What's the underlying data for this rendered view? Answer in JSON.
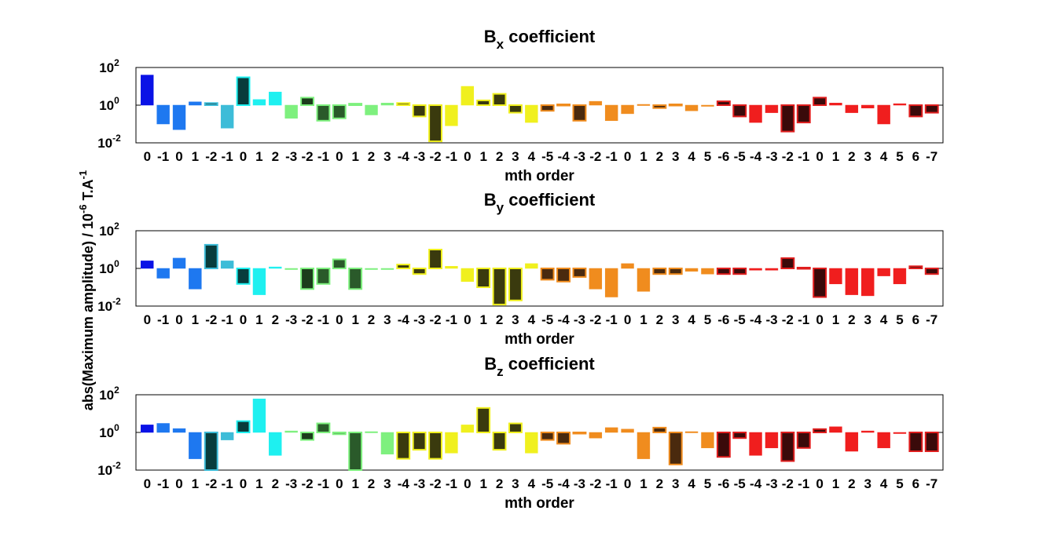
{
  "figure": {
    "ylabel_main": "abs(Maximum amplitude) / 10",
    "ylabel_exp": "-6",
    "ylabel_unit": " T.A",
    "ylabel_unit_exp": "-1"
  },
  "chart_data": [
    {
      "type": "bar",
      "title": "B",
      "title_sub": "x",
      "title_rest": " coefficient",
      "xlabel": "mth order",
      "yscale": "log",
      "ylim": [
        0.01,
        100
      ],
      "ytick_labels": [
        "10",
        "10",
        "10"
      ],
      "ytick_exps": [
        "-2",
        "0",
        "2"
      ],
      "grid": false,
      "categories": [
        "0",
        "-1",
        "0",
        "1",
        "-2",
        "-1",
        "0",
        "1",
        "2",
        "-3",
        "-2",
        "-1",
        "0",
        "1",
        "2",
        "3",
        "-4",
        "-3",
        "-2",
        "-1",
        "0",
        "1",
        "2",
        "3",
        "4",
        "-5",
        "-4",
        "-3",
        "-2",
        "-1",
        "0",
        "1",
        "2",
        "3",
        "4",
        "5",
        "-6",
        "-5",
        "-4",
        "-3",
        "-2",
        "-1",
        "0",
        "1",
        "2",
        "3",
        "4",
        "5",
        "6",
        "-7"
      ],
      "values": [
        40,
        0.1,
        0.05,
        1.5,
        1.3,
        0.06,
        30,
        2,
        5,
        0.2,
        2.5,
        0.15,
        0.2,
        1.2,
        0.3,
        1.3,
        1.3,
        0.25,
        0.012,
        0.08,
        10,
        1.8,
        4,
        0.4,
        0.12,
        0.5,
        1.1,
        0.15,
        1.6,
        0.15,
        0.35,
        1.1,
        0.7,
        1.1,
        0.5,
        0.9,
        1.6,
        0.25,
        0.12,
        0.4,
        0.04,
        0.12,
        2.5,
        1.3,
        0.4,
        0.7,
        0.1,
        1.2,
        0.25,
        0.4
      ]
    },
    {
      "type": "bar",
      "title": "B",
      "title_sub": "y",
      "title_rest": " coefficient",
      "xlabel": "mth order",
      "yscale": "log",
      "ylim": [
        0.01,
        100
      ],
      "ytick_labels": [
        "10",
        "10",
        "10"
      ],
      "ytick_exps": [
        "-2",
        "0",
        "2"
      ],
      "grid": false,
      "categories": [
        "0",
        "-1",
        "0",
        "1",
        "-2",
        "-1",
        "0",
        "1",
        "2",
        "-3",
        "-2",
        "-1",
        "0",
        "1",
        "2",
        "3",
        "-4",
        "-3",
        "-2",
        "-1",
        "0",
        "1",
        "2",
        "3",
        "4",
        "-5",
        "-4",
        "-3",
        "-2",
        "-1",
        "0",
        "1",
        "2",
        "3",
        "4",
        "5",
        "-6",
        "-5",
        "-4",
        "-3",
        "-2",
        "-1",
        "0",
        "1",
        "2",
        "3",
        "4",
        "5",
        "6",
        "-7"
      ],
      "values": [
        2.5,
        0.3,
        3.5,
        0.08,
        18,
        2.5,
        0.15,
        0.04,
        1.2,
        0.9,
        0.08,
        0.15,
        3,
        0.08,
        0.9,
        0.9,
        1.6,
        0.5,
        10,
        1.3,
        0.2,
        0.1,
        0.012,
        0.02,
        1.8,
        0.25,
        0.2,
        0.35,
        0.08,
        0.03,
        1.8,
        0.06,
        0.5,
        0.5,
        0.7,
        0.5,
        0.5,
        0.5,
        0.8,
        0.8,
        3.5,
        1.1,
        0.03,
        0.15,
        0.04,
        0.035,
        0.4,
        0.15,
        1.3,
        0.5
      ]
    },
    {
      "type": "bar",
      "title": "B",
      "title_sub": "z",
      "title_rest": " coefficient",
      "xlabel": "mth order",
      "yscale": "log",
      "ylim": [
        0.01,
        100
      ],
      "ytick_labels": [
        "10",
        "10",
        "10"
      ],
      "ytick_exps": [
        "-2",
        "0",
        "2"
      ],
      "grid": false,
      "categories": [
        "0",
        "-1",
        "0",
        "1",
        "-2",
        "-1",
        "0",
        "1",
        "2",
        "-3",
        "-2",
        "-1",
        "0",
        "1",
        "2",
        "3",
        "-4",
        "-3",
        "-2",
        "-1",
        "0",
        "1",
        "2",
        "3",
        "4",
        "-5",
        "-4",
        "-3",
        "-2",
        "-1",
        "0",
        "1",
        "2",
        "3",
        "4",
        "5",
        "-6",
        "-5",
        "-4",
        "-3",
        "-2",
        "-1",
        "0",
        "1",
        "2",
        "3",
        "4",
        "5",
        "6",
        "-7"
      ],
      "values": [
        2.5,
        3,
        1.6,
        0.04,
        0.01,
        0.4,
        4,
        60,
        0.06,
        1.2,
        0.4,
        3,
        0.8,
        0.01,
        1.1,
        0.07,
        0.04,
        0.12,
        0.04,
        0.08,
        2.5,
        20,
        0.12,
        3,
        0.08,
        0.4,
        0.25,
        0.9,
        0.5,
        1.8,
        1.5,
        0.04,
        1.8,
        0.02,
        1.1,
        0.15,
        0.05,
        0.5,
        0.06,
        0.15,
        0.03,
        0.15,
        1.5,
        2,
        0.1,
        1.2,
        0.15,
        0.9,
        0.1,
        0.1
      ]
    }
  ],
  "bar_colors": [
    "#0a12e6",
    "#1e78f0",
    "#1e78f0",
    "#1e78f0",
    "#083c3c",
    "#3dbcd8",
    "#083c3c",
    "#1ef0f0",
    "#1ef0f0",
    "#7ef07e",
    "#1c3c1c",
    "#2a5a2a",
    "#2a5a2a",
    "#2a5a2a",
    "#7ef07e",
    "#7ef07e",
    "#3a3a0e",
    "#3a3a0e",
    "#3a3a0e",
    "#f0f01e",
    "#f0f01e",
    "#3a3a0e",
    "#3a3a0e",
    "#3a3a0e",
    "#f0f01e",
    "#4a2a0e",
    "#4a2a0e",
    "#4a2a0e",
    "#f08c1e",
    "#f08c1e",
    "#f08c1e",
    "#f08c1e",
    "#4a2a0e",
    "#4a2a0e",
    "#f08c1e",
    "#f08c1e",
    "#3a0a0a",
    "#3a0a0a",
    "#f01e1e",
    "#f01e1e",
    "#3a0a0a",
    "#3a0a0a",
    "#3a0a0a",
    "#f01e1e",
    "#f01e1e",
    "#f01e1e",
    "#f01e1e",
    "#f01e1e",
    "#3a0a0a",
    "#3a0a0a"
  ],
  "bar_edges": [
    "#0a12e6",
    "#1e78f0",
    "#1e78f0",
    "#1e78f0",
    "#3dbcd8",
    "#3dbcd8",
    "#1ef0f0",
    "#1ef0f0",
    "#1ef0f0",
    "#7ef07e",
    "#7ef07e",
    "#7ef07e",
    "#7ef07e",
    "#7ef07e",
    "#7ef07e",
    "#7ef07e",
    "#f0f01e",
    "#f0f01e",
    "#f0f01e",
    "#f0f01e",
    "#f0f01e",
    "#f0f01e",
    "#f0f01e",
    "#f0f01e",
    "#f0f01e",
    "#f08c1e",
    "#f08c1e",
    "#f08c1e",
    "#f08c1e",
    "#f08c1e",
    "#f08c1e",
    "#f08c1e",
    "#f08c1e",
    "#f08c1e",
    "#f08c1e",
    "#f08c1e",
    "#e01e1e",
    "#e01e1e",
    "#f01e1e",
    "#f01e1e",
    "#e01e1e",
    "#e01e1e",
    "#e01e1e",
    "#f01e1e",
    "#f01e1e",
    "#f01e1e",
    "#f01e1e",
    "#f01e1e",
    "#e01e1e",
    "#e01e1e"
  ]
}
